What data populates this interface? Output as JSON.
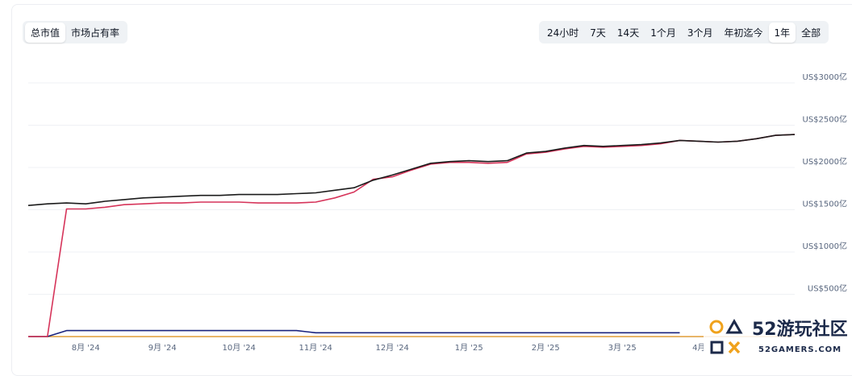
{
  "metric_tabs": {
    "options": [
      "总市值",
      "市场占有率"
    ],
    "selected": 0
  },
  "range_tabs": {
    "options": [
      "24小时",
      "7天",
      "14天",
      "1个月",
      "3个月",
      "年初迄今",
      "1年",
      "全部"
    ],
    "selected": 6
  },
  "chart_data": {
    "type": "line",
    "categories": [
      null,
      null,
      null,
      "8月 '24",
      null,
      null,
      null,
      "9月 '24",
      null,
      null,
      null,
      "10月 '24",
      null,
      null,
      null,
      "11月 '24",
      null,
      null,
      null,
      "12月 '24",
      null,
      null,
      null,
      "1月 '25",
      null,
      null,
      null,
      "2月 '25",
      null,
      null,
      null,
      "3月 '25",
      null,
      null,
      null,
      "4月",
      null,
      null,
      null,
      null,
      null
    ],
    "series": [
      {
        "color": "#e8a33c",
        "values": [
          0,
          0,
          0,
          0,
          0,
          0,
          0,
          0,
          0,
          0,
          0,
          0,
          0,
          0,
          0,
          0,
          0,
          0,
          0,
          0,
          0,
          0,
          0,
          0,
          0,
          0,
          0,
          0,
          0,
          0,
          0,
          0,
          0,
          0,
          0,
          0,
          0,
          0,
          0,
          0,
          0
        ]
      },
      {
        "color": "#1a237e",
        "values": [
          0,
          0,
          70,
          70,
          70,
          70,
          70,
          70,
          70,
          70,
          70,
          70,
          70,
          70,
          70,
          45,
          45,
          45,
          45,
          45,
          45,
          45,
          45,
          45,
          45,
          45,
          45,
          45,
          45,
          45,
          45,
          45,
          45,
          45,
          45,
          null,
          null,
          null,
          null,
          null,
          null
        ]
      },
      {
        "color": "#d6345a",
        "values": [
          0,
          0,
          1510,
          1510,
          1530,
          1560,
          1570,
          1580,
          1580,
          1590,
          1590,
          1590,
          1580,
          1580,
          1580,
          1590,
          1640,
          1710,
          1860,
          1890,
          1970,
          2040,
          2060,
          2060,
          2050,
          2060,
          2160,
          2180,
          2220,
          2250,
          2240,
          2250,
          2260,
          2280,
          2320,
          2310,
          2300,
          2310,
          2340,
          2380,
          2390
        ]
      },
      {
        "color": "#1b1b1b",
        "values": [
          1550,
          1570,
          1580,
          1570,
          1600,
          1620,
          1640,
          1650,
          1660,
          1670,
          1670,
          1680,
          1680,
          1680,
          1690,
          1700,
          1730,
          1760,
          1850,
          1910,
          1980,
          2050,
          2070,
          2080,
          2070,
          2080,
          2170,
          2190,
          2230,
          2260,
          2250,
          2260,
          2270,
          2290,
          2320,
          2310,
          2300,
          2310,
          2340,
          2380,
          2390
        ]
      }
    ],
    "ylim": [
      0,
      3000
    ],
    "yticks": [
      {
        "value": 500,
        "label": "US$500亿"
      },
      {
        "value": 1000,
        "label": "US$1000亿"
      },
      {
        "value": 1500,
        "label": "US$1500亿"
      },
      {
        "value": 2000,
        "label": "US$2000亿"
      },
      {
        "value": 2500,
        "label": "US$2500亿"
      },
      {
        "value": 3000,
        "label": "US$3000亿"
      }
    ],
    "grid": true
  },
  "watermark": {
    "name": "52游玩社区",
    "site": "52GAMERS.COM"
  }
}
